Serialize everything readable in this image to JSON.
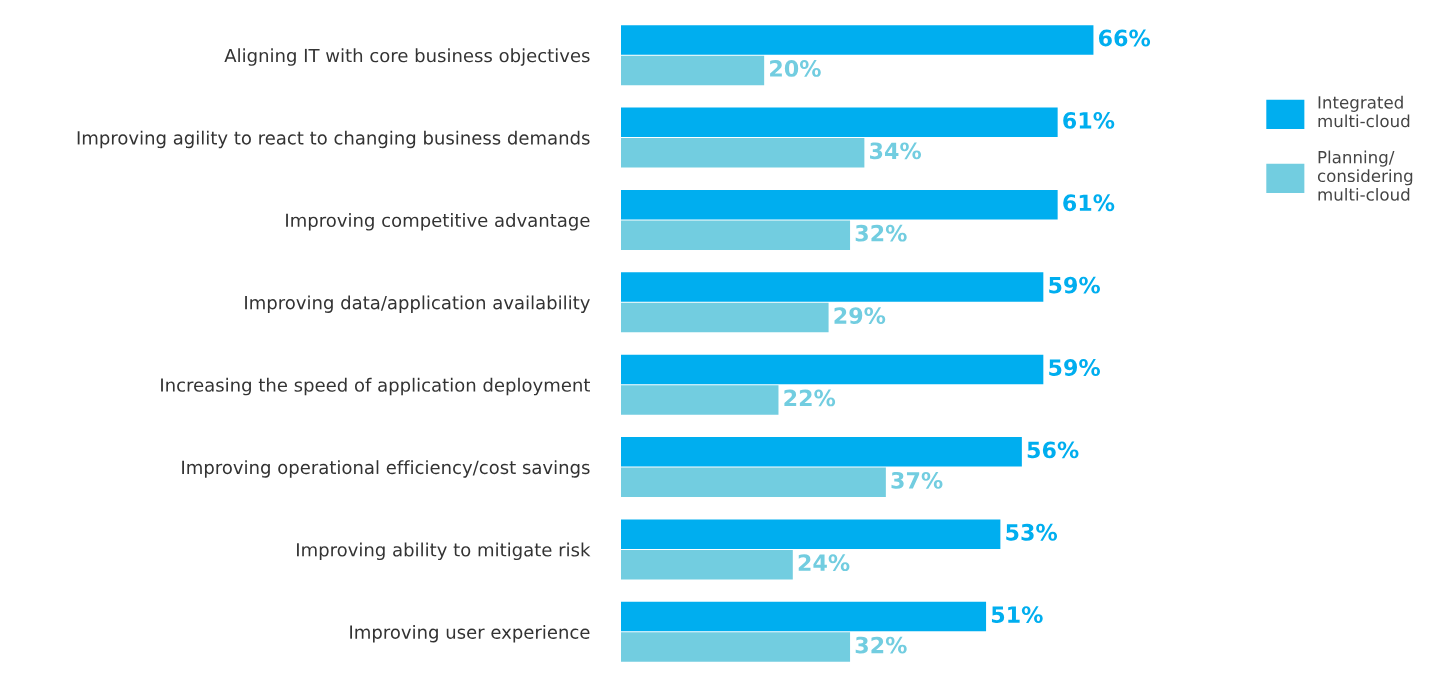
{
  "chart_data": {
    "type": "bar",
    "orientation": "horizontal",
    "categories": [
      "Aligning IT with core business objectives",
      "Improving agility to react to changing business demands",
      "Improving competitive advantage",
      "Improving data/application availability",
      "Increasing the speed of application deployment",
      "Improving operational efficiency/cost savings",
      "Improving ability to mitigate risk",
      "Improving user experience"
    ],
    "series": [
      {
        "name": "Integrated\nmulti-cloud",
        "color": "#00aeef",
        "values": [
          66,
          61,
          61,
          59,
          59,
          56,
          53,
          51
        ],
        "value_labels": [
          "66%",
          "61%",
          "61%",
          "59%",
          "59%",
          "56%",
          "53%",
          "51%"
        ]
      },
      {
        "name": "Planning/\nconsidering\nmulti-cloud",
        "color": "#72cde0",
        "values": [
          20,
          34,
          32,
          29,
          22,
          37,
          24,
          32
        ],
        "value_labels": [
          "20%",
          "34%",
          "32%",
          "29%",
          "22%",
          "37%",
          "24%",
          "32%"
        ]
      }
    ],
    "legend": "top right",
    "grid": false
  }
}
